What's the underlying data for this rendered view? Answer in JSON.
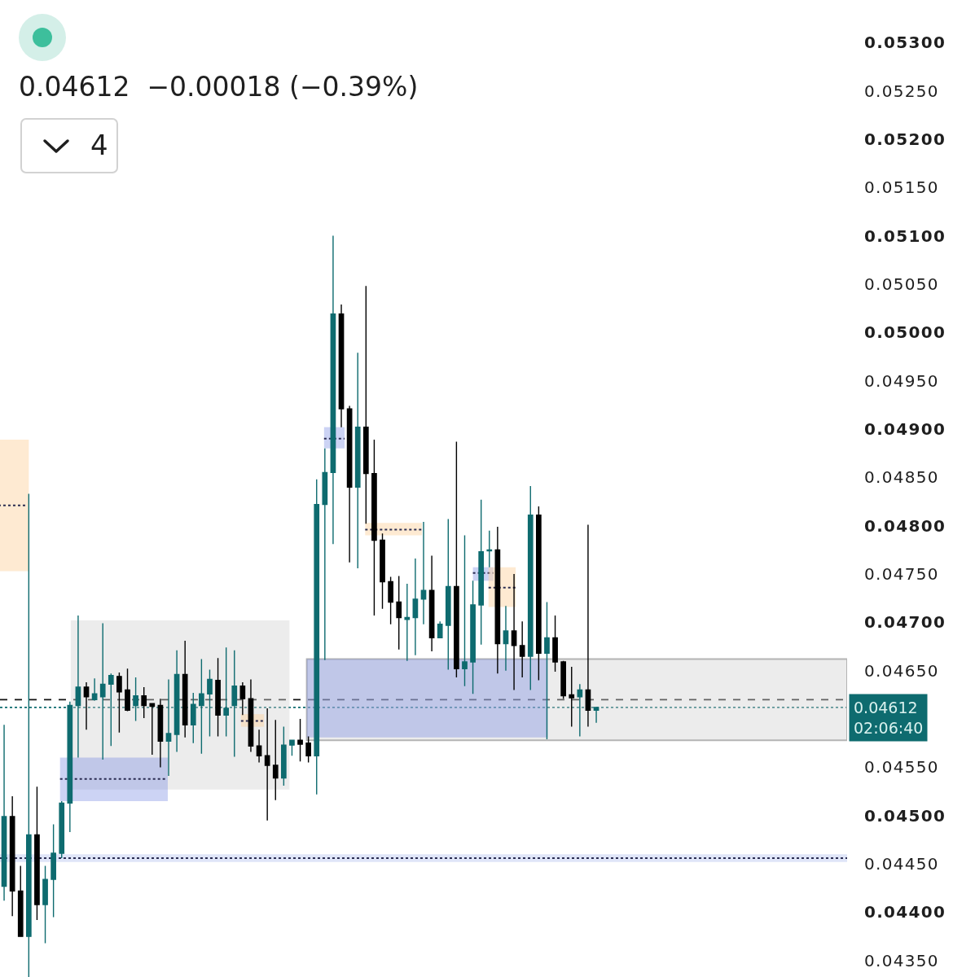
{
  "chart_data": {
    "type": "candlestick",
    "subtitle": "0.04612  −0.00018 (−0.39%)",
    "annotations": [
      "4"
    ],
    "categories": [
      null,
      null,
      null,
      null,
      null,
      null,
      null,
      null,
      null,
      null,
      null,
      null,
      null,
      null,
      null,
      null,
      null,
      null,
      null,
      null,
      null,
      null,
      null,
      null,
      null,
      null,
      null,
      null,
      null,
      null,
      null,
      null,
      null,
      null,
      null,
      null,
      null,
      null,
      null,
      null,
      null,
      null,
      null,
      null,
      null,
      null,
      null,
      null,
      null,
      null,
      null,
      null,
      null,
      null,
      null,
      null,
      null,
      null,
      null,
      null,
      null,
      null,
      null,
      null,
      null,
      null,
      null,
      null,
      null,
      null,
      null,
      null,
      null,
      null,
      null,
      null,
      null,
      null,
      null,
      null,
      null,
      null,
      null,
      null,
      null,
      null,
      null,
      null,
      null,
      null,
      null,
      null,
      null,
      null,
      null,
      null,
      null,
      null,
      null,
      null,
      null,
      null,
      null
    ],
    "ohlc": [
      [
        0.04427,
        0.04594,
        0.04412,
        0.04499
      ],
      [
        0.04499,
        0.0452,
        0.04396,
        0.04422
      ],
      [
        0.04422,
        0.04448,
        0.04375,
        0.04375
      ],
      [
        0.04375,
        0.04833,
        0.04333,
        0.0448
      ],
      [
        0.0448,
        0.0453,
        0.04392,
        0.04408
      ],
      [
        0.04408,
        0.04448,
        0.04368,
        0.04434
      ],
      [
        0.04434,
        0.04491,
        0.04395,
        0.04461
      ],
      [
        0.04461,
        0.04515,
        0.04456,
        0.04513
      ],
      [
        0.04513,
        0.04618,
        0.04483,
        0.04614
      ],
      [
        0.04614,
        0.04707,
        0.0456,
        0.04633
      ],
      [
        0.04633,
        0.04638,
        0.04589,
        0.04623
      ],
      [
        0.0462,
        0.04642,
        0.04619,
        0.04626
      ],
      [
        0.04623,
        0.04699,
        0.04558,
        0.04636
      ],
      [
        0.04636,
        0.04647,
        0.04572,
        0.04645
      ],
      [
        0.04644,
        0.04648,
        0.04586,
        0.04628
      ],
      [
        0.0463,
        0.04652,
        0.04608,
        0.04609
      ],
      [
        0.04614,
        0.04643,
        0.04598,
        0.04624
      ],
      [
        0.04624,
        0.04633,
        0.04601,
        0.04614
      ],
      [
        0.04616,
        0.04616,
        0.04563,
        0.04613
      ],
      [
        0.04614,
        0.04621,
        0.0455,
        0.04577
      ],
      [
        0.04577,
        0.04641,
        0.04541,
        0.04585
      ],
      [
        0.04584,
        0.04671,
        0.04566,
        0.04646
      ],
      [
        0.04646,
        0.04681,
        0.04581,
        0.04594
      ],
      [
        0.04594,
        0.04627,
        0.04575,
        0.04615
      ],
      [
        0.04614,
        0.04662,
        0.04564,
        0.04626
      ],
      [
        0.04626,
        0.04651,
        0.04582,
        0.04641
      ],
      [
        0.0464,
        0.04663,
        0.04582,
        0.04604
      ],
      [
        0.04604,
        0.04674,
        0.04582,
        0.04611
      ],
      [
        0.04614,
        0.04671,
        0.04561,
        0.04634
      ],
      [
        0.04634,
        0.04638,
        0.04604,
        0.04621
      ],
      [
        0.04621,
        0.04641,
        0.04566,
        0.04572
      ],
      [
        0.04572,
        0.04589,
        0.04555,
        0.04562
      ],
      [
        0.04562,
        0.04611,
        0.04495,
        0.04552
      ],
      [
        0.04552,
        0.04599,
        0.04516,
        0.04539
      ],
      [
        0.04539,
        0.04592,
        0.04531,
        0.04573
      ],
      [
        0.04573,
        0.04578,
        0.04562,
        0.04578
      ],
      [
        0.04578,
        0.046,
        0.04556,
        0.04574
      ],
      [
        0.04575,
        0.04582,
        0.04555,
        0.04562
      ],
      [
        0.04562,
        0.04848,
        0.04522,
        0.04822
      ],
      [
        0.04822,
        0.0488,
        0.04661,
        0.04855
      ],
      [
        0.04855,
        0.051,
        0.04781,
        0.05019
      ],
      [
        0.05019,
        0.05029,
        0.04902,
        0.04921
      ],
      [
        0.04921,
        0.04924,
        0.04762,
        0.0484
      ],
      [
        0.0484,
        0.04979,
        0.04756,
        0.04902
      ],
      [
        0.04902,
        0.05048,
        0.04802,
        0.04854
      ],
      [
        0.04854,
        0.04889,
        0.04707,
        0.04785
      ],
      [
        0.04785,
        0.04792,
        0.04714,
        0.04742
      ],
      [
        0.04742,
        0.04747,
        0.04698,
        0.04721
      ],
      [
        0.04721,
        0.04748,
        0.04672,
        0.04705
      ],
      [
        0.04703,
        0.0474,
        0.0466,
        0.04705
      ],
      [
        0.04705,
        0.04766,
        0.04666,
        0.04724
      ],
      [
        0.04724,
        0.04804,
        0.04698,
        0.04733
      ],
      [
        0.04733,
        0.04769,
        0.0467,
        0.04684
      ],
      [
        0.04684,
        0.04701,
        0.04684,
        0.04698
      ],
      [
        0.04697,
        0.04807,
        0.04651,
        0.04737
      ],
      [
        0.04737,
        0.04887,
        0.04643,
        0.04652
      ],
      [
        0.04652,
        0.0479,
        0.04634,
        0.04659
      ],
      [
        0.04659,
        0.04743,
        0.04626,
        0.04718
      ],
      [
        0.04718,
        0.04827,
        0.04677,
        0.04773
      ],
      [
        0.04774,
        0.04795,
        0.04757,
        0.04775
      ],
      [
        0.04775,
        0.04799,
        0.04647,
        0.04678
      ],
      [
        0.04678,
        0.04717,
        0.0465,
        0.04691
      ],
      [
        0.04691,
        0.0475,
        0.0463,
        0.04676
      ],
      [
        0.04676,
        0.04701,
        0.04643,
        0.04665
      ],
      [
        0.04665,
        0.04841,
        0.0463,
        0.04811
      ],
      [
        0.04811,
        0.0482,
        0.0464,
        0.04668
      ],
      [
        0.04668,
        0.04721,
        0.04579,
        0.04684
      ],
      [
        0.04684,
        0.04707,
        0.04649,
        0.04659
      ],
      [
        0.04659,
        0.0466,
        0.04621,
        0.04624
      ],
      [
        0.04625,
        0.04654,
        0.04592,
        0.04622
      ],
      [
        0.04623,
        0.04636,
        0.04582,
        0.0463
      ],
      [
        0.0463,
        0.04801,
        0.04592,
        0.04609
      ],
      [
        0.04609,
        0.04612,
        0.04596,
        0.04612
      ],
      null,
      null,
      null,
      null,
      null,
      null,
      null,
      null,
      null,
      null,
      null,
      null,
      null,
      null,
      null,
      null,
      null,
      null,
      null,
      null,
      null,
      null,
      null,
      null,
      null,
      null,
      null,
      null,
      null,
      null
    ],
    "colors": [
      "#0e6b6f",
      "#000000",
      "#000000",
      "#0e6b6f",
      "#000000",
      "#0e6b6f",
      "#0e6b6f",
      "#0e6b6f",
      "#0e6b6f",
      "#0e6b6f",
      "#000000",
      "#0e6b6f",
      "#0e6b6f",
      "#0e6b6f",
      "#000000",
      "#000000",
      "#0e6b6f",
      "#000000",
      "#000000",
      "#000000",
      "#0e6b6f",
      "#0e6b6f",
      "#000000",
      "#0e6b6f",
      "#0e6b6f",
      "#0e6b6f",
      "#000000",
      "#0e6b6f",
      "#0e6b6f",
      "#000000",
      "#000000",
      "#000000",
      "#000000",
      "#000000",
      "#0e6b6f",
      "#0e6b6f",
      "#000000",
      "#000000",
      "#0e6b6f",
      "#0e6b6f",
      "#0e6b6f",
      "#000000",
      "#000000",
      "#0e6b6f",
      "#000000",
      "#000000",
      "#000000",
      "#000000",
      "#000000",
      "#0e6b6f",
      "#0e6b6f",
      "#0e6b6f",
      "#000000",
      "#0e6b6f",
      "#0e6b6f",
      "#000000",
      "#0e6b6f",
      "#0e6b6f",
      "#0e6b6f",
      "#0e6b6f",
      "#000000",
      "#0e6b6f",
      "#000000",
      "#000000",
      "#0e6b6f",
      "#000000",
      "#0e6b6f",
      "#000000",
      "#000000",
      "#000000",
      "#0e6b6f",
      "#000000",
      "#0e6b6f",
      null,
      null,
      null,
      null,
      null,
      null,
      null,
      null,
      null,
      null,
      null,
      null,
      null,
      null,
      null,
      null,
      null,
      null,
      null,
      null,
      null,
      null,
      null,
      null,
      null,
      null,
      null,
      null,
      null,
      null
    ],
    "ylim": [
      0.04333,
      0.05344
    ],
    "yticks": [
      {
        "value": 0.0435,
        "label": "0.04350"
      },
      {
        "value": 0.044,
        "label": "0.04400"
      },
      {
        "value": 0.0445,
        "label": "0.04450"
      },
      {
        "value": 0.045,
        "label": "0.04500"
      },
      {
        "value": 0.0455,
        "label": "0.04550"
      },
      {
        "value": 0.0465,
        "label": "0.04650"
      },
      {
        "value": 0.047,
        "label": "0.04700"
      },
      {
        "value": 0.0475,
        "label": "0.04750"
      },
      {
        "value": 0.048,
        "label": "0.04800"
      },
      {
        "value": 0.0485,
        "label": "0.04850"
      },
      {
        "value": 0.049,
        "label": "0.04900"
      },
      {
        "value": 0.0495,
        "label": "0.04950"
      },
      {
        "value": 0.05,
        "label": "0.05000"
      },
      {
        "value": 0.0505,
        "label": "0.05050"
      },
      {
        "value": 0.051,
        "label": "0.05100"
      },
      {
        "value": 0.0515,
        "label": "0.05150"
      },
      {
        "value": 0.052,
        "label": "0.05200"
      },
      {
        "value": 0.0525,
        "label": "0.05250"
      },
      {
        "value": 0.053,
        "label": "0.05300"
      }
    ],
    "tick_labels": "y",
    "bands": [
      {
        "axis": "y",
        "from": 0.04452,
        "to": 0.0446,
        "color": "#dfe5f8"
      }
    ],
    "ref_lines": [
      {
        "axis": "y",
        "value": 0.04456,
        "color": "#2b2d52",
        "line_style": "dotted"
      },
      {
        "axis": "y",
        "value": 0.0462,
        "color": "#111111",
        "line_style": "dashed"
      },
      {
        "axis": "y",
        "value": 0.04612,
        "label": "0.04612\n02:06:40",
        "color": "#0e6b6f",
        "line_style": "dotted"
      }
    ]
  }
}
